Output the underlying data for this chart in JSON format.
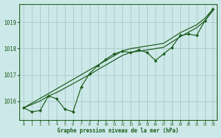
{
  "title": "Graphe pression niveau de la mer (hPa)",
  "background_color": "#cce8e8",
  "grid_color": "#aacccc",
  "line_color": "#1a5c1a",
  "xlim": [
    -0.5,
    23.5
  ],
  "ylim": [
    1015.3,
    1019.7
  ],
  "yticks": [
    1016,
    1017,
    1018,
    1019
  ],
  "xticks": [
    0,
    1,
    2,
    3,
    4,
    5,
    6,
    7,
    8,
    9,
    10,
    11,
    12,
    13,
    14,
    15,
    16,
    17,
    18,
    19,
    20,
    21,
    22,
    23
  ],
  "hours": [
    0,
    1,
    2,
    3,
    4,
    5,
    6,
    7,
    8,
    9,
    10,
    11,
    12,
    13,
    14,
    15,
    16,
    17,
    18,
    19,
    20,
    21,
    22,
    23
  ],
  "pressure_actual": [
    1015.75,
    1015.6,
    1015.65,
    1016.2,
    1016.1,
    1015.7,
    1015.6,
    1016.55,
    1017.05,
    1017.35,
    1017.6,
    1017.8,
    1017.9,
    1017.85,
    1017.95,
    1017.85,
    1017.55,
    1017.8,
    1018.05,
    1018.5,
    1018.55,
    1018.5,
    1019.05,
    1019.5
  ],
  "line1": [
    1015.75,
    1015.93,
    1016.11,
    1016.29,
    1016.47,
    1016.65,
    1016.83,
    1017.01,
    1017.19,
    1017.37,
    1017.55,
    1017.73,
    1017.91,
    1018.0,
    1018.05,
    1018.1,
    1018.15,
    1018.2,
    1018.4,
    1018.6,
    1018.75,
    1018.9,
    1019.15,
    1019.5
  ],
  "line2": [
    1015.75,
    1015.88,
    1016.01,
    1016.2,
    1016.33,
    1016.5,
    1016.67,
    1016.84,
    1017.01,
    1017.2,
    1017.38,
    1017.56,
    1017.74,
    1017.86,
    1017.9,
    1017.95,
    1018.0,
    1018.05,
    1018.25,
    1018.45,
    1018.62,
    1018.79,
    1019.05,
    1019.45
  ]
}
